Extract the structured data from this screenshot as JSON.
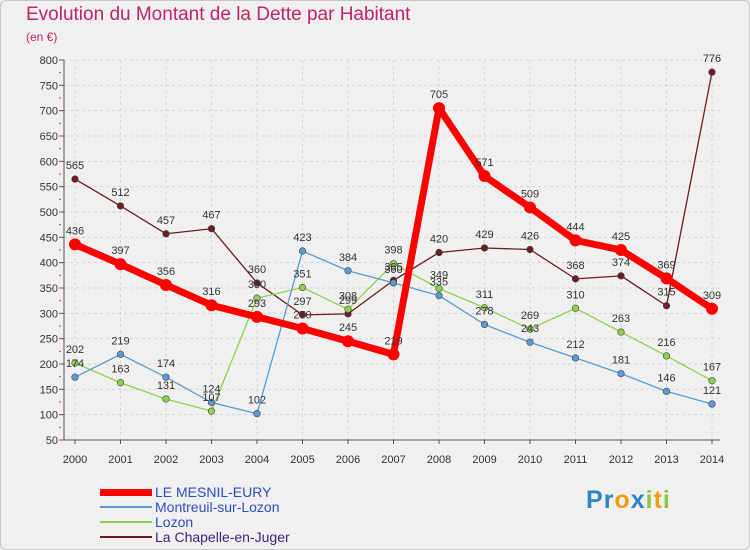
{
  "chart_data": {
    "type": "line",
    "title": "Evolution du Montant de la Dette par Habitant",
    "subtitle": "(en €)",
    "x": [
      "2000",
      "2001",
      "2002",
      "2003",
      "2004",
      "2005",
      "2006",
      "2007",
      "2008",
      "2009",
      "2010",
      "2011",
      "2012",
      "2013",
      "2014"
    ],
    "ylim": [
      50,
      800
    ],
    "yticks": [
      50,
      100,
      150,
      200,
      250,
      300,
      350,
      400,
      450,
      500,
      550,
      600,
      650,
      700,
      750,
      800
    ],
    "grid": true,
    "legend_position": "bottom-left",
    "series": [
      {
        "name": "LE MESNIL-EURY",
        "color": "#ff0000",
        "values": [
          436,
          397,
          356,
          316,
          293,
          270,
          245,
          219,
          705,
          571,
          509,
          444,
          425,
          369,
          309
        ]
      },
      {
        "name": "Montreuil-sur-Lozon",
        "color": "#5b9bd5",
        "values": [
          174,
          219,
          174,
          124,
          102,
          423,
          384,
          360,
          335,
          278,
          243,
          212,
          181,
          146,
          121
        ]
      },
      {
        "name": "Lozon",
        "color": "#8fd14f",
        "values": [
          202,
          163,
          131,
          107,
          330,
          351,
          308,
          398,
          349,
          311,
          269,
          310,
          263,
          216,
          167
        ]
      },
      {
        "name": "La Chapelle-en-Juger",
        "color": "#6b1d23",
        "values": [
          565,
          512,
          457,
          467,
          360,
          297,
          299,
          365,
          420,
          429,
          426,
          368,
          374,
          315,
          776
        ]
      }
    ]
  },
  "logo": {
    "letters": [
      {
        "ch": "P",
        "color": "#2e86c1"
      },
      {
        "ch": "r",
        "color": "#2e86c1"
      },
      {
        "ch": "o",
        "color": "#f39c12"
      },
      {
        "ch": "x",
        "color": "#2e86c1"
      },
      {
        "ch": "i",
        "color": "#8cc63f"
      },
      {
        "ch": "t",
        "color": "#f39c12"
      },
      {
        "ch": "i",
        "color": "#8cc63f"
      }
    ]
  }
}
